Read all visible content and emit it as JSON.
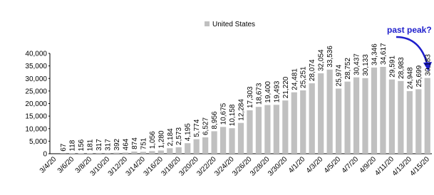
{
  "chart_data": {
    "type": "bar",
    "legend": "United States",
    "annotation": "past peak?",
    "color": "#c0c0c0",
    "categories": [
      "3/4/20",
      null,
      "3/6/20",
      null,
      "3/8/20",
      null,
      "3/10/20",
      null,
      "3/12/20",
      null,
      "3/14/20",
      null,
      "3/16/20",
      null,
      "3/18/20",
      null,
      "3/20/20",
      null,
      "3/22/20",
      null,
      "3/24/20",
      null,
      "3/26/20",
      null,
      "3/28/20",
      null,
      "3/30/20",
      null,
      "4/1/20",
      null,
      "4/3/20",
      null,
      "4/5/20",
      null,
      "4/7/20",
      null,
      "4/9/20",
      null,
      "4/11/20",
      null,
      "4/13/20",
      null,
      "4/15/20"
    ],
    "values": [
      null,
      67,
      118,
      156,
      181,
      317,
      317,
      392,
      464,
      874,
      751,
      1056,
      1280,
      2184,
      2573,
      4195,
      5774,
      6527,
      8956,
      10675,
      10158,
      12284,
      17303,
      18673,
      19400,
      19493,
      21220,
      24481,
      25251,
      28074,
      32054,
      33536,
      25974,
      28752,
      30437,
      30133,
      34346,
      34617,
      29591,
      28983,
      24948,
      25699,
      30183
    ],
    "value_labels": [
      null,
      "67",
      "118",
      "156",
      "181",
      "317",
      "317",
      "392",
      "464",
      "874",
      "751",
      "1,056",
      "1,280",
      "2,184",
      "2,573",
      "4,195",
      "5,774",
      "6,527",
      "8,956",
      "10,675",
      "10,158",
      "12,284",
      "17,303",
      "18,673",
      "19,400",
      "19,493",
      "21,220",
      "24,481",
      "25,251",
      "28,074",
      "32,054",
      "33,536",
      "25,974",
      "28,752",
      "30,437",
      "30,133",
      "34,346",
      "34,617",
      "29,591",
      "28,983",
      "24,948",
      "25,699",
      "30,183"
    ],
    "ylim": [
      0,
      40000
    ],
    "yticks": [
      0,
      {
        "value": 5000,
        "label": "5,000"
      },
      {
        "value": 10000,
        "label": "10,000"
      },
      {
        "value": 15000,
        "label": "15,000"
      },
      {
        "value": 20000,
        "label": "20,000"
      },
      {
        "value": 25000,
        "label": "25,000"
      },
      {
        "value": 30000,
        "label": "30,000"
      },
      {
        "value": 35000,
        "label": "35,000"
      },
      {
        "value": 40000,
        "label": "40,000"
      }
    ]
  }
}
